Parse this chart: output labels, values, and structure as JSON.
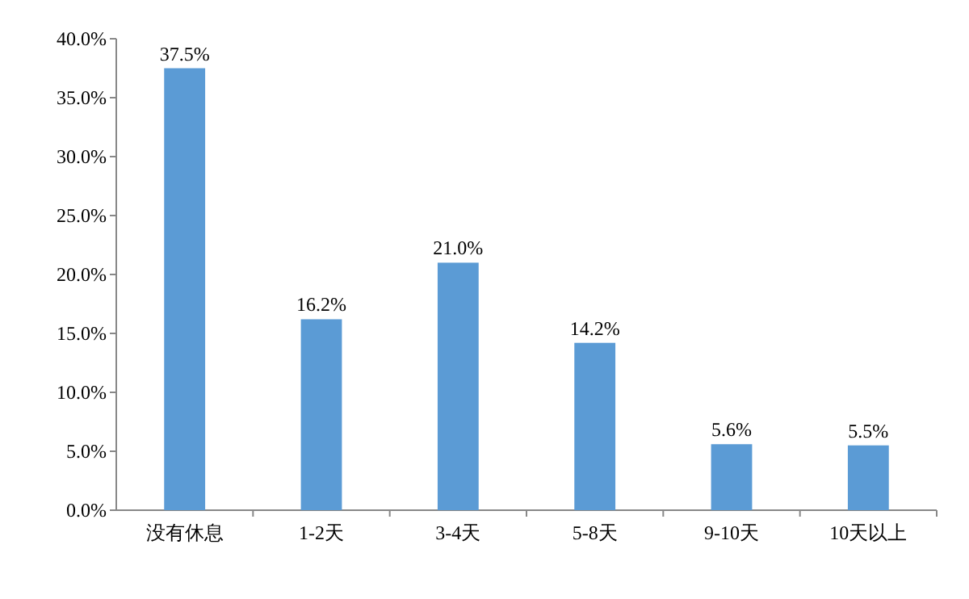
{
  "chart_data": {
    "type": "bar",
    "categories": [
      "没有休息",
      "1-2天",
      "3-4天",
      "5-8天",
      "9-10天",
      "10天以上"
    ],
    "values": [
      37.5,
      16.2,
      21.0,
      14.2,
      5.6,
      5.5
    ],
    "value_labels": [
      "37.5%",
      "16.2%",
      "21.0%",
      "14.2%",
      "5.6%",
      "5.5%"
    ],
    "color": "#5b9bd5",
    "ylim": [
      0,
      40
    ],
    "yticks": [
      {
        "value": 0,
        "label": "0.0%"
      },
      {
        "value": 5,
        "label": "5.0%"
      },
      {
        "value": 10,
        "label": "10.0%"
      },
      {
        "value": 15,
        "label": "15.0%"
      },
      {
        "value": 20,
        "label": "20.0%"
      },
      {
        "value": 25,
        "label": "25.0%"
      },
      {
        "value": 30,
        "label": "30.0%"
      },
      {
        "value": 35,
        "label": "35.0%"
      },
      {
        "value": 40,
        "label": "40.0%"
      }
    ],
    "grid": false
  }
}
